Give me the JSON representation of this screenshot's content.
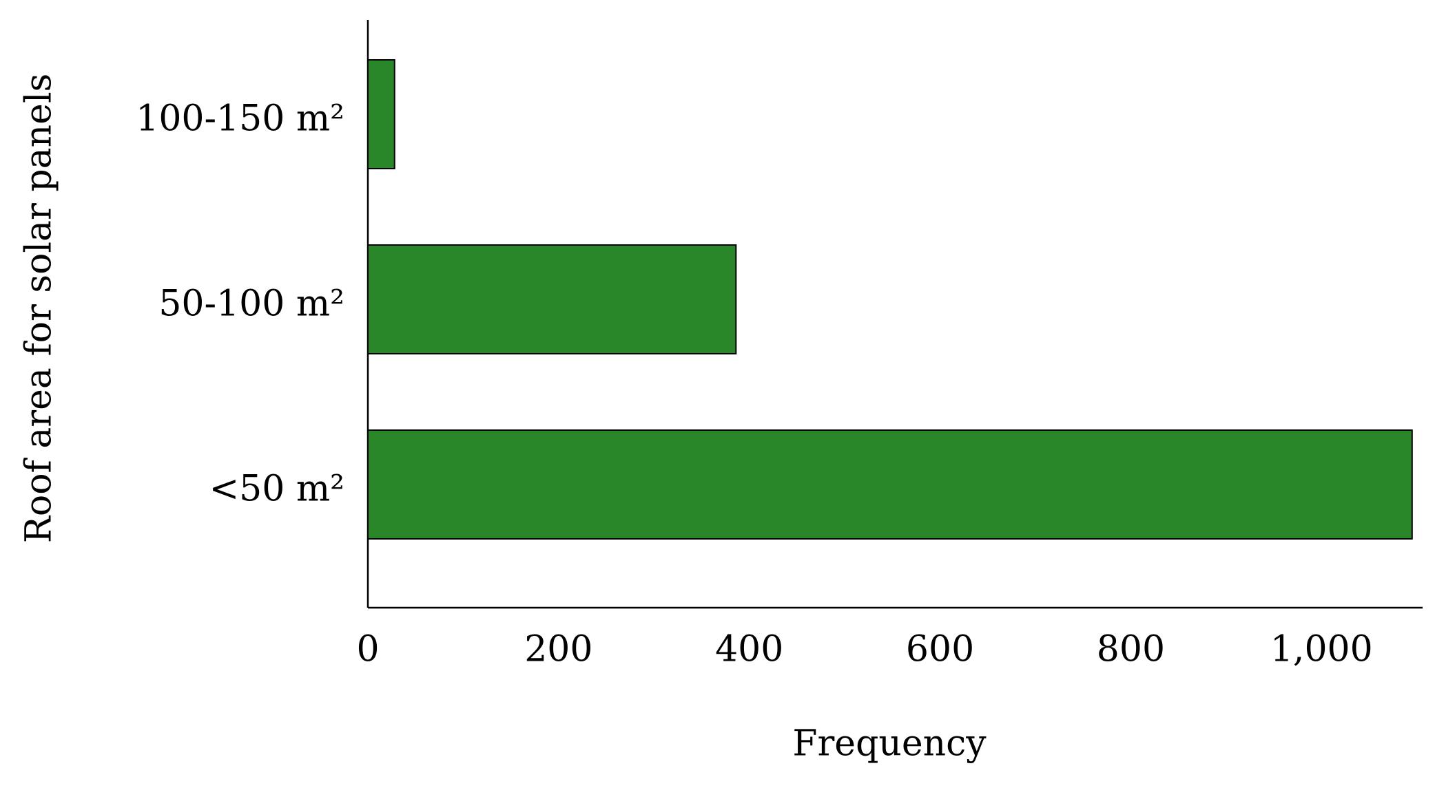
{
  "chart_data": {
    "type": "barh",
    "categories": [
      "100-150 m²",
      "50-100 m²",
      "<50 m²"
    ],
    "values": [
      28,
      386,
      1095
    ],
    "color": "#2a8729",
    "xlabel": "Frequency",
    "ylabel": "Roof area for solar panels",
    "xlim": [
      0,
      1106
    ],
    "xticks": [
      0,
      200,
      400,
      600,
      800,
      {
        "value": 1000,
        "label": "1,000"
      }
    ]
  }
}
